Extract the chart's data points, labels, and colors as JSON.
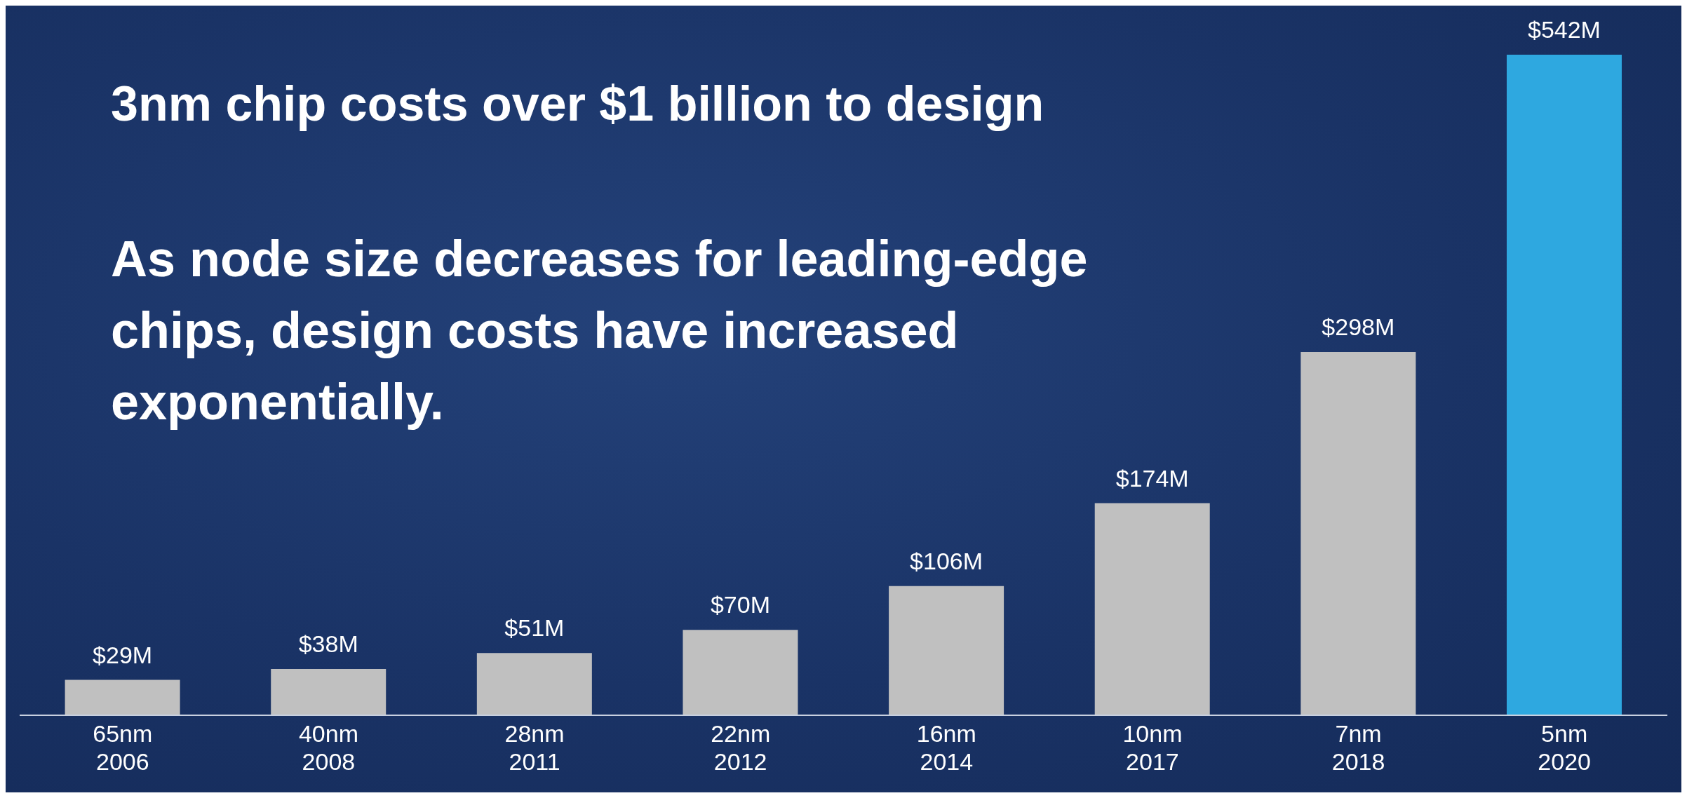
{
  "chart_data": {
    "type": "bar",
    "title": "3nm chip costs over $1 billion to design",
    "subtitle": "As node size decreases for leading-edge chips, design costs have increased exponentially.",
    "categories": [
      "65nm\n2006",
      "40nm\n2008",
      "28nm\n2011",
      "22nm\n2012",
      "16nm\n2014",
      "10nm\n2017",
      "7nm\n2018",
      "5nm\n2020"
    ],
    "values": [
      29,
      38,
      51,
      70,
      106,
      174,
      298,
      542
    ],
    "colors": [
      "#c0c0c0",
      "#c0c0c0",
      "#c0c0c0",
      "#c0c0c0",
      "#c0c0c0",
      "#c0c0c0",
      "#c0c0c0",
      "#2ea8e0"
    ],
    "value_labels": [
      "$29M",
      "$38M",
      "$51M",
      "$70M",
      "$106M",
      "$174M",
      "$298M",
      "$542M"
    ],
    "grid": false,
    "legend": false
  }
}
